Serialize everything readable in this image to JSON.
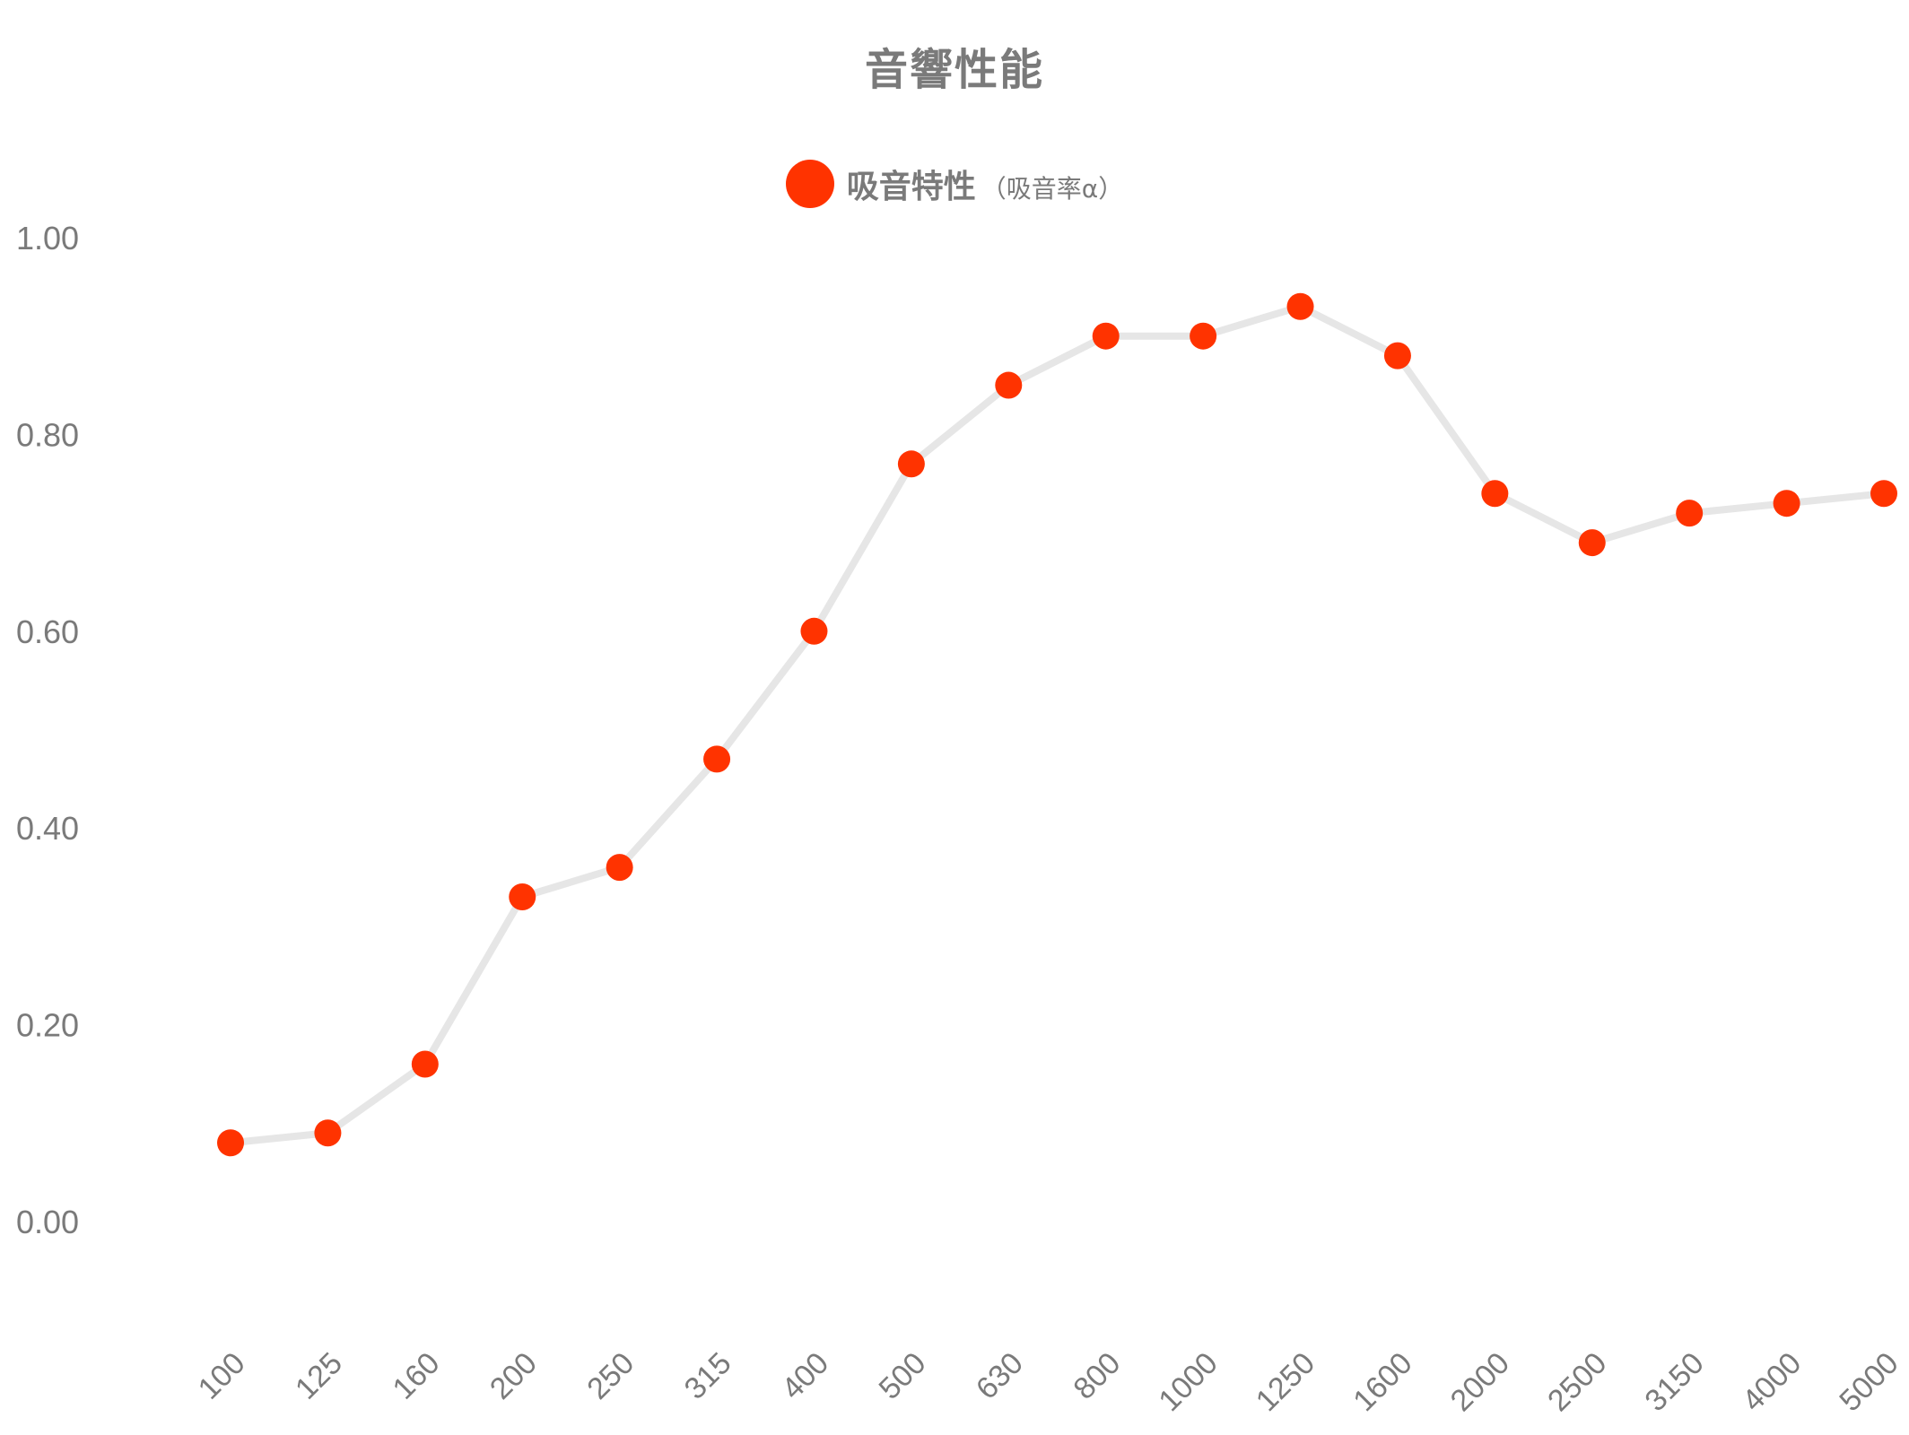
{
  "title": "音響性能",
  "legend": {
    "main_label": "吸音特性",
    "sub_label": "（吸音率α）"
  },
  "colors": {
    "point": "#ff3300",
    "line": "#e6e6e6",
    "text": "#7a7a7a"
  },
  "chart_data": {
    "type": "line",
    "title": "音響性能",
    "xlabel": "",
    "ylabel": "",
    "ylim": [
      0,
      1
    ],
    "y_ticks": [
      "0.00",
      "0.20",
      "0.40",
      "0.60",
      "0.80",
      "1.00"
    ],
    "grid": false,
    "legend_position": "top-center",
    "categories": [
      "100",
      "125",
      "160",
      "200",
      "250",
      "315",
      "400",
      "500",
      "630",
      "800",
      "1000",
      "1250",
      "1600",
      "2000",
      "2500",
      "3150",
      "4000",
      "5000"
    ],
    "series": [
      {
        "name": "吸音特性（吸音率α）",
        "values": [
          0.08,
          0.09,
          0.16,
          0.33,
          0.36,
          0.47,
          0.6,
          0.77,
          0.85,
          0.9,
          0.9,
          0.93,
          0.88,
          0.74,
          0.69,
          0.72,
          0.73,
          0.74
        ]
      }
    ]
  }
}
